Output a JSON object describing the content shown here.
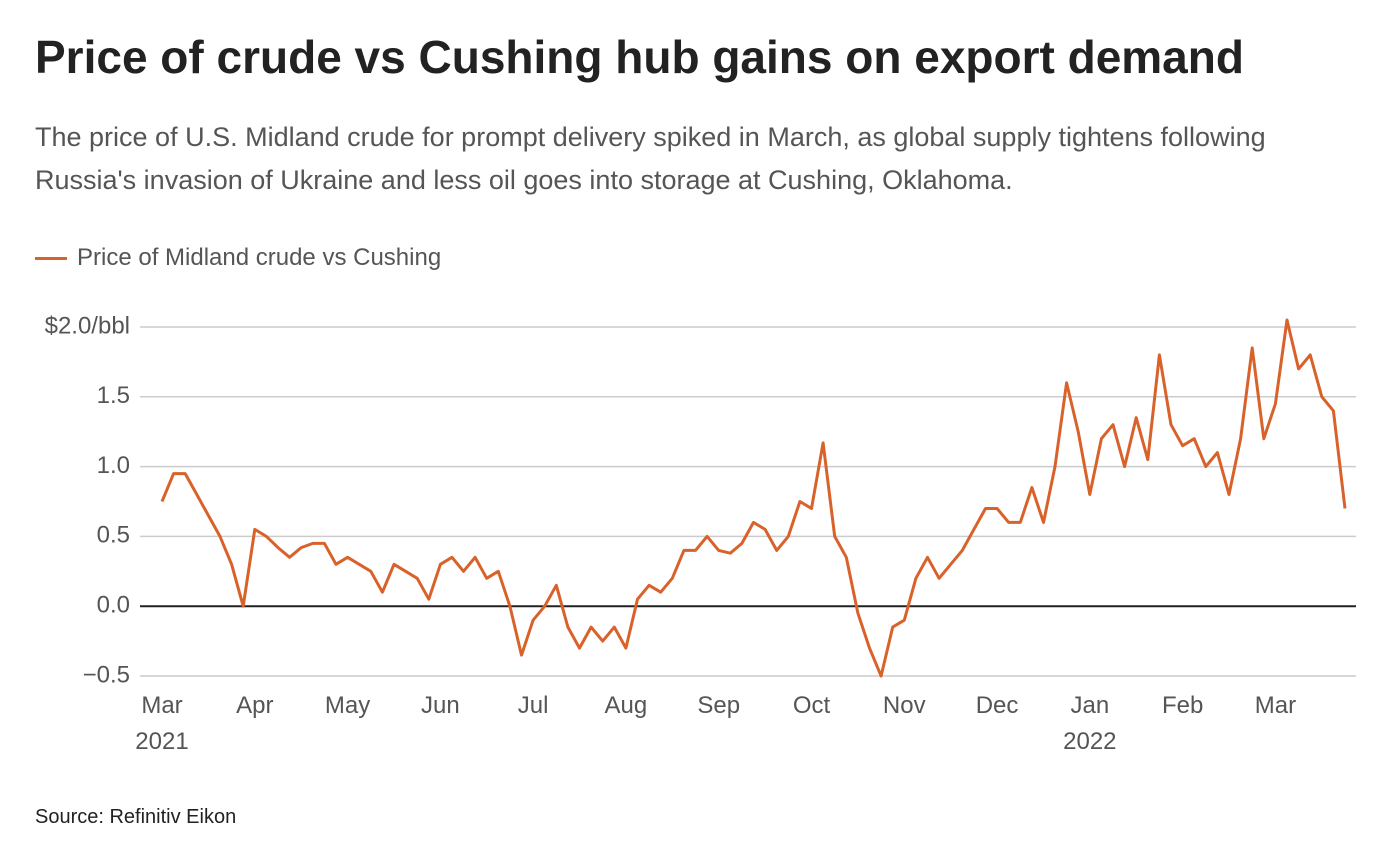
{
  "chart_data": {
    "type": "line",
    "title": "Price of crude vs Cushing hub gains on export demand",
    "subtitle": "The price of U.S. Midland crude for prompt delivery spiked in March, as global supply tightens following Russia's invasion of Ukraine and less oil goes into storage at Cushing, Oklahoma.",
    "source": "Source: Refinitiv Eikon",
    "categories": [
      "Mar 2021",
      null,
      null,
      null,
      null,
      null,
      null,
      null,
      "Apr",
      null,
      null,
      null,
      null,
      null,
      null,
      null,
      "May",
      null,
      null,
      null,
      null,
      null,
      null,
      null,
      "Jun",
      null,
      null,
      null,
      null,
      null,
      null,
      null,
      "Jul",
      null,
      null,
      null,
      null,
      null,
      null,
      null,
      "Aug",
      null,
      null,
      null,
      null,
      null,
      null,
      null,
      "Sep",
      null,
      null,
      null,
      null,
      null,
      null,
      null,
      "Oct",
      null,
      null,
      null,
      null,
      null,
      null,
      null,
      "Nov",
      null,
      null,
      null,
      null,
      null,
      null,
      null,
      "Dec",
      null,
      null,
      null,
      null,
      null,
      null,
      null,
      "Jan 2022",
      null,
      null,
      null,
      null,
      null,
      null,
      null,
      "Feb",
      null,
      null,
      null,
      null,
      null,
      null,
      null,
      "Mar",
      null,
      null,
      null,
      null,
      null,
      null
    ],
    "series": [
      {
        "name": "Price of Midland crude vs Cushing",
        "color": "#d9622b",
        "values": [
          0.75,
          0.95,
          0.95,
          0.8,
          0.65,
          0.5,
          0.3,
          0.0,
          0.55,
          0.5,
          0.42,
          0.35,
          0.42,
          0.45,
          0.45,
          0.3,
          0.35,
          0.3,
          0.25,
          0.1,
          0.3,
          0.25,
          0.2,
          0.05,
          0.3,
          0.35,
          0.25,
          0.35,
          0.2,
          0.25,
          0.0,
          -0.35,
          -0.1,
          0.0,
          0.15,
          -0.15,
          -0.3,
          -0.15,
          -0.25,
          -0.15,
          -0.3,
          0.05,
          0.15,
          0.1,
          0.2,
          0.4,
          0.4,
          0.5,
          0.4,
          0.38,
          0.45,
          0.6,
          0.55,
          0.4,
          0.5,
          0.75,
          0.7,
          1.17,
          0.5,
          0.35,
          -0.05,
          -0.3,
          -0.5,
          -0.15,
          -0.1,
          0.2,
          0.35,
          0.2,
          0.3,
          0.4,
          0.55,
          0.7,
          0.7,
          0.6,
          0.6,
          0.85,
          0.6,
          1.0,
          1.6,
          1.25,
          0.8,
          1.2,
          1.3,
          1.0,
          1.35,
          1.05,
          1.8,
          1.3,
          1.15,
          1.2,
          1.0,
          1.1,
          0.8,
          1.2,
          1.85,
          1.2,
          1.45,
          2.05,
          1.7,
          1.8,
          1.5,
          1.4,
          0.7
        ]
      }
    ],
    "ylim": [
      -0.5,
      2.0
    ],
    "yticks": [
      {
        "value": 2.0,
        "label": "$2.0/bbl"
      },
      {
        "value": 1.5,
        "label": "1.5"
      },
      {
        "value": 1.0,
        "label": "1.0"
      },
      {
        "value": 0.5,
        "label": "0.5"
      },
      {
        "value": 0.0,
        "label": "0.0"
      },
      {
        "value": -0.5,
        "label": "−0.5"
      }
    ],
    "grid": true,
    "zero_line": true
  }
}
